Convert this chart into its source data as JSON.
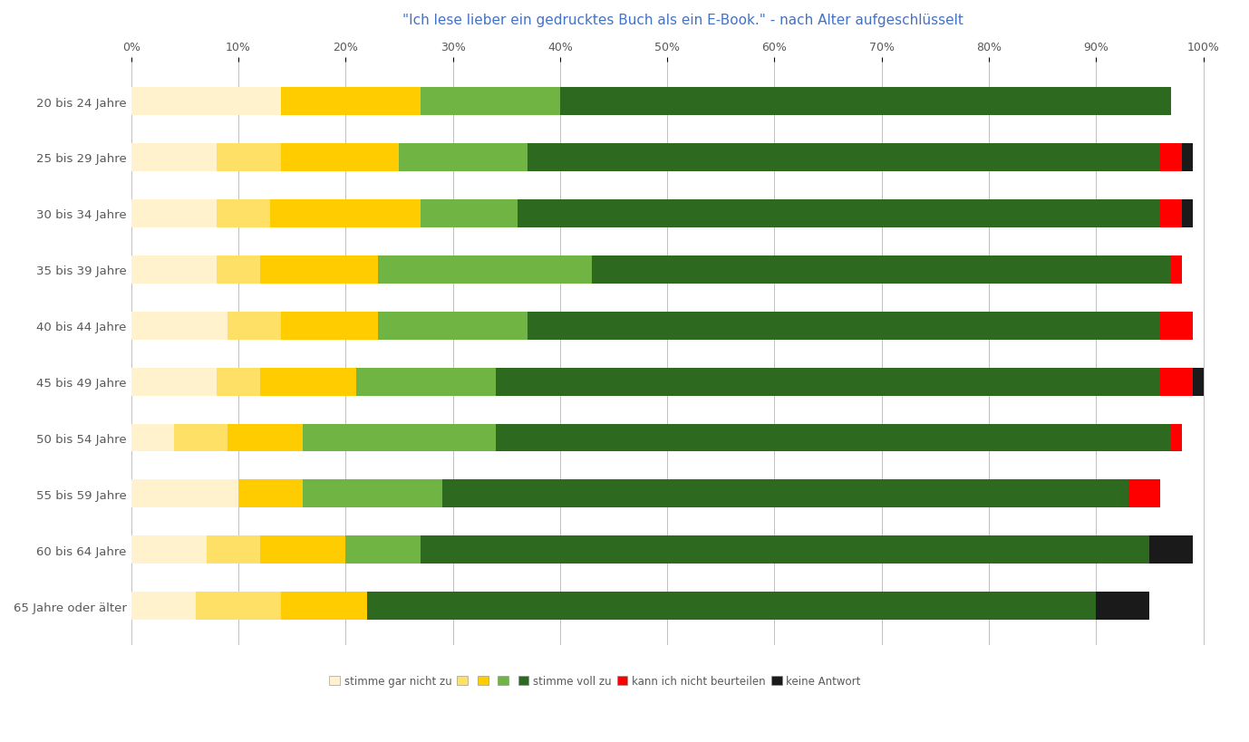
{
  "title": "\"Ich lese lieber ein gedrucktes Buch als ein E-Book.\" - nach Alter aufgeschlüsselt",
  "categories": [
    "20 bis 24 Jahre",
    "25 bis 29 Jahre",
    "30 bis 34 Jahre",
    "35 bis 39 Jahre",
    "40 bis 44 Jahre",
    "45 bis 49 Jahre",
    "50 bis 54 Jahre",
    "55 bis 59 Jahre",
    "60 bis 64 Jahre",
    "65 Jahre oder älter"
  ],
  "segments": {
    "s1": [
      14,
      8,
      8,
      8,
      9,
      8,
      4,
      10,
      7,
      6
    ],
    "s2": [
      0,
      6,
      5,
      4,
      5,
      4,
      5,
      0,
      5,
      8
    ],
    "s3": [
      13,
      11,
      14,
      11,
      9,
      9,
      7,
      6,
      8,
      8
    ],
    "s4": [
      13,
      12,
      9,
      20,
      14,
      13,
      18,
      13,
      7,
      0
    ],
    "s5": [
      57,
      59,
      60,
      54,
      59,
      62,
      63,
      64,
      68,
      68
    ],
    "kk": [
      0,
      2,
      2,
      1,
      3,
      3,
      1,
      3,
      0,
      0
    ],
    "ka": [
      0,
      1,
      1,
      0,
      0,
      1,
      0,
      0,
      4,
      5
    ]
  },
  "colors": {
    "s1": "#FFF2CC",
    "s2": "#FFE066",
    "s3": "#FFCC00",
    "s4": "#70B544",
    "s5": "#2D6A1F",
    "kk": "#FF0000",
    "ka": "#1A1A1A"
  },
  "xtick_positions": [
    0,
    10,
    20,
    30,
    40,
    50,
    60,
    70,
    80,
    90,
    100
  ],
  "xtick_labels": [
    "0%",
    "10%",
    "20%",
    "30%",
    "40%",
    "50%",
    "60%",
    "70%",
    "80%",
    "90%",
    "100%"
  ],
  "title_color": "#4472C4",
  "tick_color": "#595959",
  "background_color": "#FFFFFF",
  "bar_height": 0.5,
  "legend_items": [
    {
      "key": "s1",
      "label": "stimme gar nicht zu"
    },
    {
      "key": "s2",
      "label": ""
    },
    {
      "key": "s3",
      "label": ""
    },
    {
      "key": "s4",
      "label": ""
    },
    {
      "key": "s5",
      "label": "stimme voll zu"
    },
    {
      "key": "kk",
      "label": "kann ich nicht beurteilen"
    },
    {
      "key": "ka",
      "label": "keine Antwort"
    }
  ]
}
